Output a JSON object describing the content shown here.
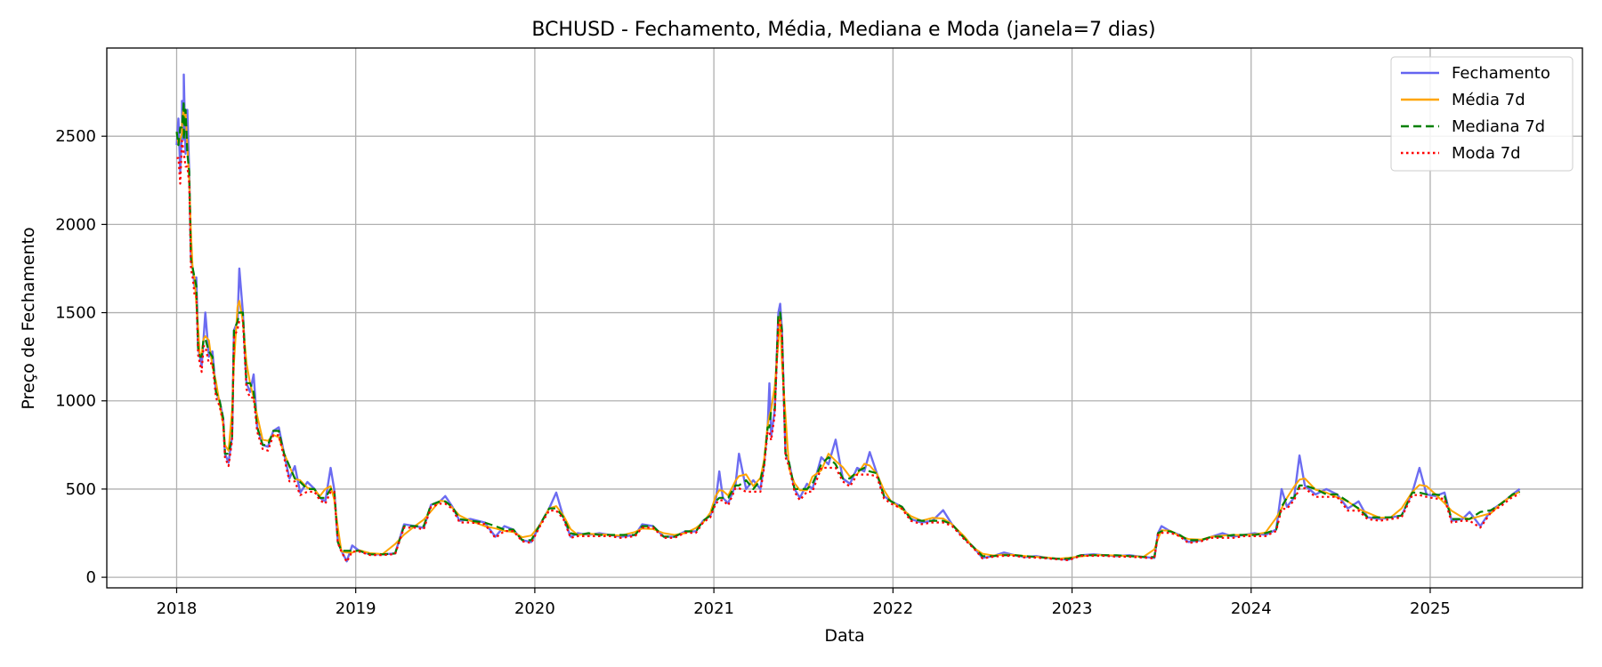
{
  "chart_data": {
    "type": "line",
    "title": "BCHUSD - Fechamento, Média, Mediana e Moda (janela=7 dias)",
    "xlabel": "Data",
    "ylabel": "Preço de Fechamento",
    "x_ticks": [
      "2018",
      "2019",
      "2020",
      "2021",
      "2022",
      "2023",
      "2024",
      "2025"
    ],
    "y_ticks": [
      0,
      500,
      1000,
      1500,
      2000,
      2500
    ],
    "xlim": [
      2017.61,
      2025.85
    ],
    "ylim": [
      -60,
      3000
    ],
    "grid": true,
    "legend_position": "top-right",
    "series": [
      {
        "name": "Fechamento",
        "color": "#6464f0",
        "style": "solid"
      },
      {
        "name": "Média 7d",
        "color": "#ffa500",
        "style": "solid"
      },
      {
        "name": "Mediana 7d",
        "color": "#008000",
        "style": "dashed"
      },
      {
        "name": "Moda 7d",
        "color": "#ff0000",
        "style": "dotted"
      }
    ],
    "close_points": [
      [
        2018.0,
        2450
      ],
      [
        2018.01,
        2600
      ],
      [
        2018.02,
        2300
      ],
      [
        2018.03,
        2550
      ],
      [
        2018.04,
        2480
      ],
      [
        2018.03,
        2700
      ],
      [
        2018.04,
        2850
      ],
      [
        2018.05,
        2400
      ],
      [
        2018.06,
        2650
      ],
      [
        2018.07,
        2300
      ],
      [
        2018.08,
        1800
      ],
      [
        2018.09,
        1750
      ],
      [
        2018.1,
        1650
      ],
      [
        2018.11,
        1700
      ],
      [
        2018.12,
        1300
      ],
      [
        2018.13,
        1250
      ],
      [
        2018.14,
        1200
      ],
      [
        2018.15,
        1350
      ],
      [
        2018.16,
        1500
      ],
      [
        2018.18,
        1250
      ],
      [
        2018.2,
        1280
      ],
      [
        2018.22,
        1050
      ],
      [
        2018.24,
        1000
      ],
      [
        2018.26,
        900
      ],
      [
        2018.27,
        700
      ],
      [
        2018.29,
        650
      ],
      [
        2018.31,
        800
      ],
      [
        2018.32,
        1400
      ],
      [
        2018.34,
        1450
      ],
      [
        2018.35,
        1750
      ],
      [
        2018.37,
        1500
      ],
      [
        2018.39,
        1100
      ],
      [
        2018.41,
        1050
      ],
      [
        2018.43,
        1150
      ],
      [
        2018.45,
        850
      ],
      [
        2018.48,
        750
      ],
      [
        2018.51,
        740
      ],
      [
        2018.54,
        830
      ],
      [
        2018.57,
        850
      ],
      [
        2018.6,
        700
      ],
      [
        2018.63,
        560
      ],
      [
        2018.66,
        630
      ],
      [
        2018.69,
        480
      ],
      [
        2018.73,
        540
      ],
      [
        2018.77,
        500
      ],
      [
        2018.8,
        450
      ],
      [
        2018.83,
        430
      ],
      [
        2018.86,
        620
      ],
      [
        2018.88,
        500
      ],
      [
        2018.9,
        200
      ],
      [
        2018.92,
        150
      ],
      [
        2018.95,
        90
      ],
      [
        2018.98,
        180
      ],
      [
        2019.02,
        150
      ],
      [
        2019.08,
        130
      ],
      [
        2019.15,
        130
      ],
      [
        2019.22,
        135
      ],
      [
        2019.27,
        300
      ],
      [
        2019.33,
        290
      ],
      [
        2019.38,
        280
      ],
      [
        2019.42,
        410
      ],
      [
        2019.47,
        430
      ],
      [
        2019.5,
        460
      ],
      [
        2019.54,
        400
      ],
      [
        2019.58,
        320
      ],
      [
        2019.64,
        330
      ],
      [
        2019.72,
        310
      ],
      [
        2019.78,
        230
      ],
      [
        2019.83,
        290
      ],
      [
        2019.88,
        270
      ],
      [
        2019.93,
        210
      ],
      [
        2019.98,
        200
      ],
      [
        2020.03,
        300
      ],
      [
        2020.08,
        390
      ],
      [
        2020.12,
        480
      ],
      [
        2020.16,
        340
      ],
      [
        2020.2,
        230
      ],
      [
        2020.24,
        250
      ],
      [
        2020.3,
        240
      ],
      [
        2020.36,
        250
      ],
      [
        2020.42,
        240
      ],
      [
        2020.48,
        230
      ],
      [
        2020.56,
        240
      ],
      [
        2020.6,
        300
      ],
      [
        2020.66,
        290
      ],
      [
        2020.72,
        230
      ],
      [
        2020.78,
        230
      ],
      [
        2020.84,
        260
      ],
      [
        2020.9,
        260
      ],
      [
        2020.94,
        320
      ],
      [
        2020.98,
        350
      ],
      [
        2021.01,
        430
      ],
      [
        2021.03,
        600
      ],
      [
        2021.05,
        450
      ],
      [
        2021.08,
        420
      ],
      [
        2021.12,
        520
      ],
      [
        2021.14,
        700
      ],
      [
        2021.18,
        500
      ],
      [
        2021.22,
        550
      ],
      [
        2021.26,
        500
      ],
      [
        2021.28,
        640
      ],
      [
        2021.3,
        850
      ],
      [
        2021.31,
        1100
      ],
      [
        2021.32,
        800
      ],
      [
        2021.34,
        950
      ],
      [
        2021.36,
        1500
      ],
      [
        2021.37,
        1550
      ],
      [
        2021.38,
        1400
      ],
      [
        2021.4,
        700
      ],
      [
        2021.42,
        650
      ],
      [
        2021.45,
        500
      ],
      [
        2021.48,
        450
      ],
      [
        2021.52,
        530
      ],
      [
        2021.55,
        500
      ],
      [
        2021.6,
        680
      ],
      [
        2021.64,
        640
      ],
      [
        2021.68,
        780
      ],
      [
        2021.72,
        560
      ],
      [
        2021.76,
        530
      ],
      [
        2021.8,
        620
      ],
      [
        2021.84,
        600
      ],
      [
        2021.87,
        710
      ],
      [
        2021.91,
        590
      ],
      [
        2021.95,
        460
      ],
      [
        2021.99,
        430
      ],
      [
        2022.05,
        400
      ],
      [
        2022.1,
        330
      ],
      [
        2022.16,
        310
      ],
      [
        2022.22,
        320
      ],
      [
        2022.28,
        380
      ],
      [
        2022.33,
        300
      ],
      [
        2022.4,
        220
      ],
      [
        2022.45,
        170
      ],
      [
        2022.5,
        110
      ],
      [
        2022.56,
        120
      ],
      [
        2022.62,
        140
      ],
      [
        2022.68,
        125
      ],
      [
        2022.74,
        115
      ],
      [
        2022.8,
        120
      ],
      [
        2022.86,
        110
      ],
      [
        2022.92,
        105
      ],
      [
        2022.98,
        100
      ],
      [
        2023.05,
        125
      ],
      [
        2023.12,
        130
      ],
      [
        2023.18,
        125
      ],
      [
        2023.25,
        120
      ],
      [
        2023.32,
        125
      ],
      [
        2023.4,
        115
      ],
      [
        2023.46,
        110
      ],
      [
        2023.48,
        250
      ],
      [
        2023.5,
        290
      ],
      [
        2023.55,
        260
      ],
      [
        2023.6,
        240
      ],
      [
        2023.65,
        200
      ],
      [
        2023.72,
        210
      ],
      [
        2023.78,
        230
      ],
      [
        2023.84,
        250
      ],
      [
        2023.9,
        230
      ],
      [
        2023.96,
        240
      ],
      [
        2024.02,
        250
      ],
      [
        2024.08,
        240
      ],
      [
        2024.14,
        270
      ],
      [
        2024.17,
        500
      ],
      [
        2024.2,
        400
      ],
      [
        2024.24,
        450
      ],
      [
        2024.27,
        690
      ],
      [
        2024.3,
        520
      ],
      [
        2024.36,
        470
      ],
      [
        2024.42,
        500
      ],
      [
        2024.48,
        470
      ],
      [
        2024.54,
        390
      ],
      [
        2024.6,
        430
      ],
      [
        2024.65,
        340
      ],
      [
        2024.72,
        330
      ],
      [
        2024.78,
        340
      ],
      [
        2024.84,
        350
      ],
      [
        2024.9,
        480
      ],
      [
        2024.94,
        620
      ],
      [
        2024.98,
        470
      ],
      [
        2025.03,
        460
      ],
      [
        2025.08,
        480
      ],
      [
        2025.12,
        320
      ],
      [
        2025.18,
        330
      ],
      [
        2025.22,
        370
      ],
      [
        2025.28,
        290
      ],
      [
        2025.34,
        380
      ],
      [
        2025.4,
        420
      ],
      [
        2025.46,
        470
      ],
      [
        2025.5,
        500
      ]
    ]
  }
}
